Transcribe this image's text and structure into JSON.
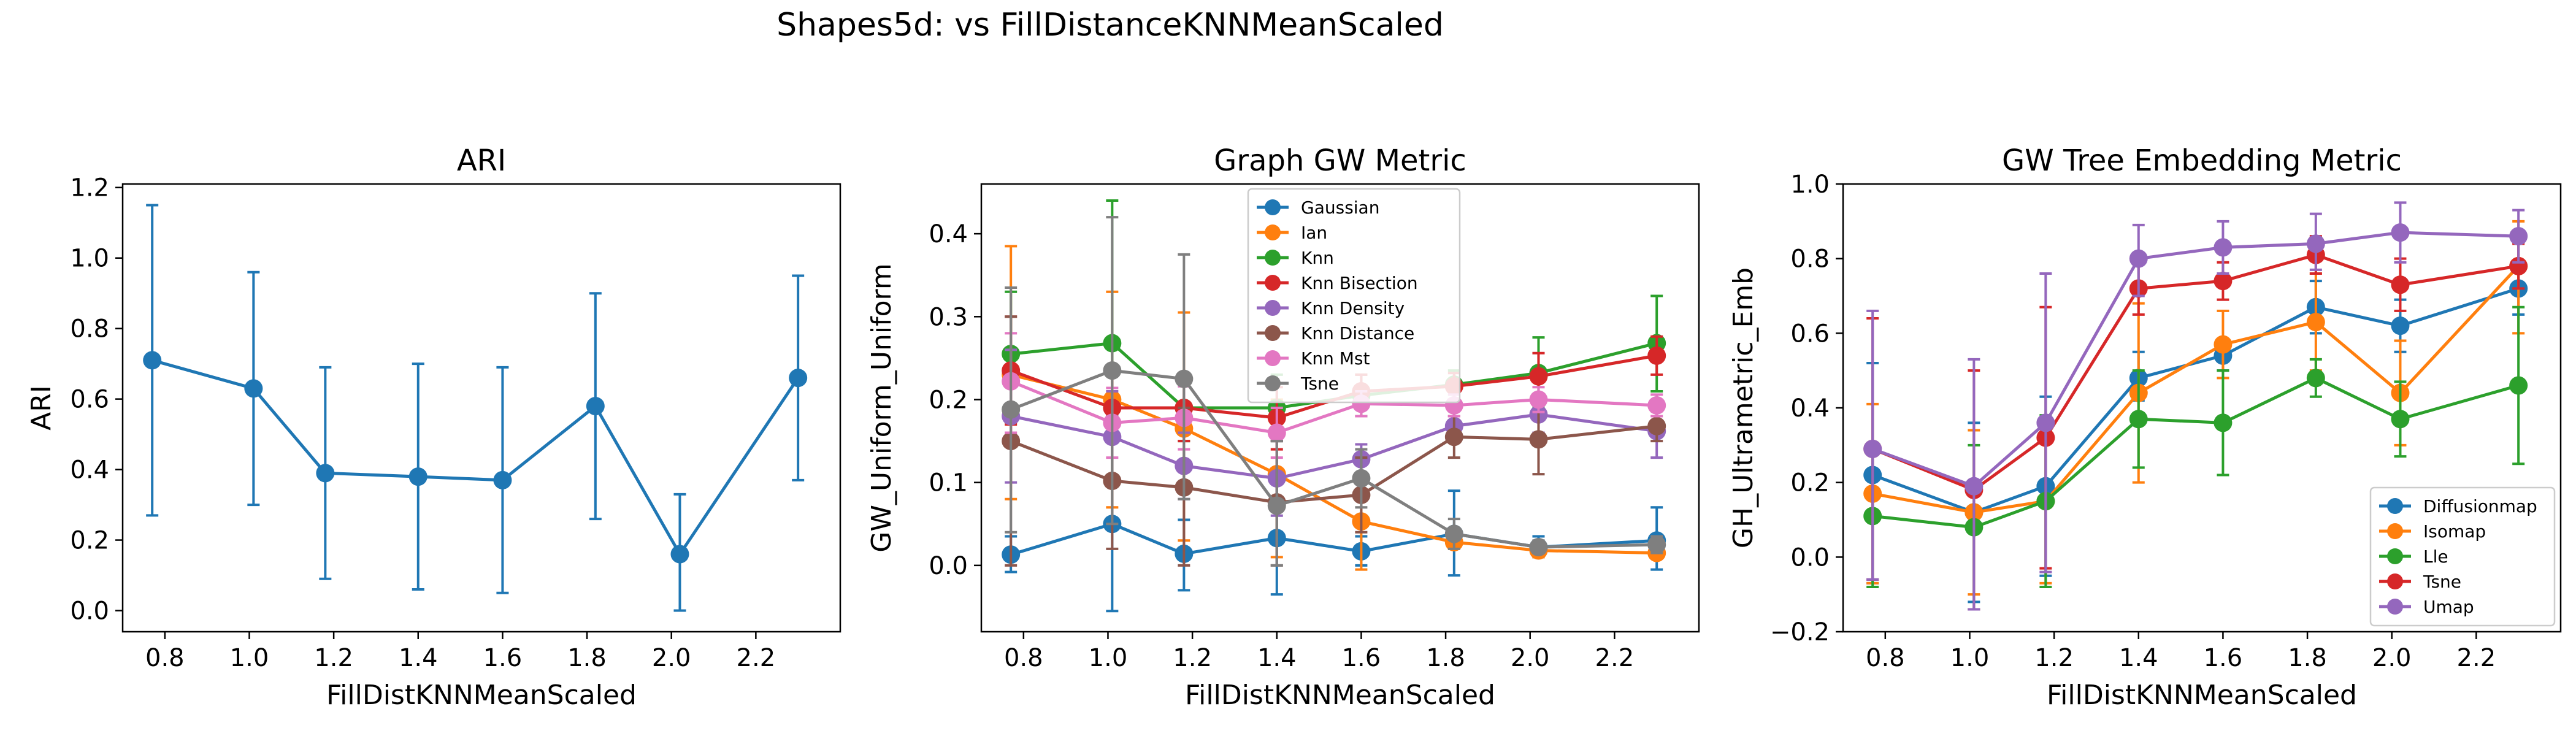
{
  "figure": {
    "suptitle": "Shapes5d: vs FillDistanceKNNMeanScaled"
  },
  "chart_data": [
    {
      "type": "line",
      "title": "ARI",
      "xlabel": "FillDistKNNMeanScaled",
      "ylabel": "ARI",
      "xlim": [
        0.7,
        2.4
      ],
      "ylim": [
        -0.06,
        1.21
      ],
      "xticks": [
        0.8,
        1.0,
        1.2,
        1.4,
        1.6,
        1.8,
        2.0,
        2.2
      ],
      "yticks": [
        0.0,
        0.2,
        0.4,
        0.6,
        0.8,
        1.0,
        1.2
      ],
      "legend": false,
      "x": [
        0.77,
        1.01,
        1.18,
        1.4,
        1.6,
        1.82,
        2.02,
        2.3
      ],
      "series": [
        {
          "color": "#1f77b4",
          "values": [
            0.71,
            0.63,
            0.39,
            0.38,
            0.37,
            0.58,
            0.16,
            0.66
          ],
          "err_low": [
            0.27,
            0.3,
            0.09,
            0.06,
            0.05,
            0.26,
            0.0,
            0.37
          ],
          "err_high": [
            1.15,
            0.96,
            0.69,
            0.7,
            0.69,
            0.9,
            0.33,
            0.95
          ]
        }
      ]
    },
    {
      "type": "line",
      "title": "Graph GW Metric",
      "xlabel": "FillDistKNNMeanScaled",
      "ylabel": "GW_Uniform_Uniform",
      "xlim": [
        0.7,
        2.4
      ],
      "ylim": [
        -0.08,
        0.46
      ],
      "xticks": [
        0.8,
        1.0,
        1.2,
        1.4,
        1.6,
        1.8,
        2.0,
        2.2
      ],
      "yticks": [
        0.0,
        0.1,
        0.2,
        0.3,
        0.4
      ],
      "legend": "top-center",
      "x": [
        0.77,
        1.01,
        1.18,
        1.4,
        1.6,
        1.82,
        2.02,
        2.3
      ],
      "series": [
        {
          "name": "Gaussian",
          "color": "#1f77b4",
          "values": [
            0.013,
            0.05,
            0.014,
            0.033,
            0.017,
            0.038,
            0.022,
            0.03
          ],
          "err_low": [
            -0.008,
            -0.055,
            -0.03,
            -0.035,
            0.0,
            -0.012,
            0.01,
            -0.005
          ],
          "err_high": [
            0.035,
            0.15,
            0.055,
            0.1,
            0.035,
            0.09,
            0.035,
            0.07
          ]
        },
        {
          "name": "Ian",
          "color": "#ff7f0e",
          "values": [
            0.23,
            0.2,
            0.165,
            0.11,
            0.053,
            0.028,
            0.018,
            0.015
          ],
          "err_low": [
            0.08,
            0.07,
            0.03,
            0.01,
            -0.005,
            0.02,
            0.01,
            0.01
          ],
          "err_high": [
            0.385,
            0.33,
            0.305,
            0.2,
            0.11,
            0.04,
            0.025,
            0.025
          ]
        },
        {
          "name": "Knn",
          "color": "#2ca02c",
          "values": [
            0.255,
            0.268,
            0.19,
            0.19,
            0.205,
            0.218,
            0.232,
            0.268
          ],
          "err_low": [
            0.18,
            0.1,
            0.15,
            0.15,
            0.18,
            0.2,
            0.19,
            0.21
          ],
          "err_high": [
            0.33,
            0.44,
            0.23,
            0.23,
            0.23,
            0.235,
            0.275,
            0.325
          ]
        },
        {
          "name": "Knn Bisection",
          "color": "#d62728",
          "values": [
            0.235,
            0.19,
            0.19,
            0.178,
            0.21,
            0.216,
            0.228,
            0.253
          ],
          "err_low": [
            0.17,
            0.15,
            0.15,
            0.14,
            0.19,
            0.2,
            0.2,
            0.23
          ],
          "err_high": [
            0.3,
            0.23,
            0.23,
            0.215,
            0.23,
            0.232,
            0.256,
            0.276
          ]
        },
        {
          "name": "Knn Density",
          "color": "#9467bd",
          "values": [
            0.18,
            0.155,
            0.12,
            0.105,
            0.128,
            0.168,
            0.182,
            0.162
          ],
          "err_low": [
            0.1,
            0.1,
            0.08,
            0.06,
            0.11,
            0.15,
            0.16,
            0.13
          ],
          "err_high": [
            0.26,
            0.21,
            0.16,
            0.15,
            0.146,
            0.186,
            0.204,
            0.194
          ]
        },
        {
          "name": "Knn Distance",
          "color": "#8c564b",
          "values": [
            0.15,
            0.102,
            0.094,
            0.076,
            0.085,
            0.155,
            0.152,
            0.168
          ],
          "err_low": [
            0.0,
            0.02,
            0.0,
            0.0,
            0.04,
            0.13,
            0.11,
            0.15
          ],
          "err_high": [
            0.3,
            0.18,
            0.19,
            0.15,
            0.13,
            0.18,
            0.194,
            0.186
          ]
        },
        {
          "name": "Knn Mst",
          "color": "#e377c2",
          "values": [
            0.222,
            0.172,
            0.178,
            0.16,
            0.195,
            0.193,
            0.2,
            0.193
          ],
          "err_low": [
            0.16,
            0.13,
            0.14,
            0.13,
            0.18,
            0.18,
            0.185,
            0.18
          ],
          "err_high": [
            0.28,
            0.214,
            0.216,
            0.19,
            0.21,
            0.206,
            0.215,
            0.206
          ]
        },
        {
          "name": "Tsne",
          "color": "#7f7f7f",
          "values": [
            0.188,
            0.235,
            0.225,
            0.072,
            0.105,
            0.038,
            0.022,
            0.025
          ],
          "err_low": [
            0.04,
            0.05,
            0.08,
            0.0,
            0.07,
            0.02,
            0.015,
            0.015
          ],
          "err_high": [
            0.335,
            0.42,
            0.375,
            0.15,
            0.14,
            0.056,
            0.03,
            0.035
          ]
        }
      ]
    },
    {
      "type": "line",
      "title": "GW Tree Embedding Metric",
      "xlabel": "FillDistKNNMeanScaled",
      "ylabel": "GH_Ultrametric_Emb",
      "xlim": [
        0.7,
        2.4
      ],
      "ylim": [
        -0.2,
        1.0
      ],
      "xticks": [
        0.8,
        1.0,
        1.2,
        1.4,
        1.6,
        1.8,
        2.0,
        2.2
      ],
      "yticks": [
        -0.2,
        0.0,
        0.2,
        0.4,
        0.6,
        0.8,
        1.0
      ],
      "legend": "bottom-right",
      "x": [
        0.77,
        1.01,
        1.18,
        1.4,
        1.6,
        1.82,
        2.02,
        2.3
      ],
      "series": [
        {
          "name": "Diffusionmap",
          "color": "#1f77b4",
          "values": [
            0.22,
            0.12,
            0.19,
            0.48,
            0.54,
            0.67,
            0.62,
            0.72
          ],
          "err_low": [
            -0.07,
            -0.12,
            -0.05,
            0.42,
            0.5,
            0.6,
            0.55,
            0.65
          ],
          "err_high": [
            0.52,
            0.36,
            0.43,
            0.55,
            0.58,
            0.74,
            0.69,
            0.79
          ]
        },
        {
          "name": "Isomap",
          "color": "#ff7f0e",
          "values": [
            0.17,
            0.12,
            0.15,
            0.44,
            0.57,
            0.63,
            0.44,
            0.78
          ],
          "err_low": [
            -0.07,
            -0.1,
            -0.07,
            0.2,
            0.48,
            0.5,
            0.3,
            0.6
          ],
          "err_high": [
            0.41,
            0.34,
            0.37,
            0.68,
            0.66,
            0.76,
            0.58,
            0.9
          ]
        },
        {
          "name": "Lle",
          "color": "#2ca02c",
          "values": [
            0.11,
            0.08,
            0.15,
            0.37,
            0.36,
            0.48,
            0.37,
            0.46
          ],
          "err_low": [
            -0.08,
            -0.14,
            -0.08,
            0.24,
            0.22,
            0.43,
            0.27,
            0.25
          ],
          "err_high": [
            0.3,
            0.3,
            0.38,
            0.5,
            0.5,
            0.53,
            0.47,
            0.67
          ]
        },
        {
          "name": "Tsne",
          "color": "#d62728",
          "values": [
            0.29,
            0.18,
            0.32,
            0.72,
            0.74,
            0.81,
            0.73,
            0.78
          ],
          "err_low": [
            -0.06,
            -0.14,
            -0.03,
            0.65,
            0.69,
            0.76,
            0.66,
            0.72
          ],
          "err_high": [
            0.64,
            0.5,
            0.67,
            0.79,
            0.79,
            0.86,
            0.8,
            0.84
          ]
        },
        {
          "name": "Umap",
          "color": "#9467bd",
          "values": [
            0.29,
            0.19,
            0.36,
            0.8,
            0.83,
            0.84,
            0.87,
            0.86
          ],
          "err_low": [
            -0.06,
            -0.14,
            -0.04,
            0.7,
            0.76,
            0.77,
            0.79,
            0.79
          ],
          "err_high": [
            0.66,
            0.53,
            0.76,
            0.89,
            0.9,
            0.92,
            0.95,
            0.93
          ]
        }
      ]
    }
  ]
}
